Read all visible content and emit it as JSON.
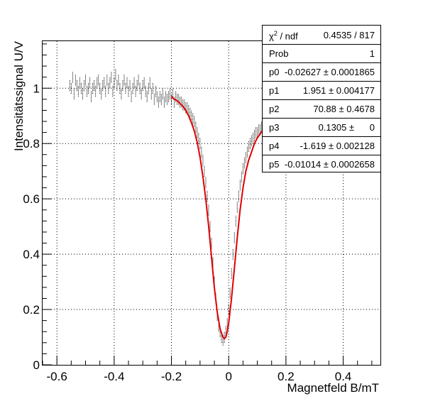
{
  "chart_data": {
    "type": "scatter",
    "xlabel": "Magnetfeld B/mT",
    "ylabel": "Intensitätssignal U/V",
    "xlim": [
      -0.65,
      0.53
    ],
    "ylim": [
      0,
      1.17
    ],
    "xticks": [
      -0.6,
      -0.4,
      -0.2,
      0,
      0.2,
      0.4
    ],
    "xtick_labels": [
      "-0.6",
      "-0.4",
      "-0.2",
      "0",
      "0.2",
      "0.4"
    ],
    "yticks": [
      0,
      0.2,
      0.4,
      0.6,
      0.8,
      1
    ],
    "ytick_labels": [
      "0",
      "0.2",
      "0.4",
      "0.6",
      "0.8",
      "1"
    ],
    "grid": true,
    "series": [
      {
        "kind": "data-with-error-bars",
        "color": "#000000",
        "x": [
          -0.555,
          -0.55,
          -0.545,
          -0.54,
          -0.535,
          -0.53,
          -0.525,
          -0.52,
          -0.515,
          -0.51,
          -0.505,
          -0.5,
          -0.495,
          -0.49,
          -0.485,
          -0.48,
          -0.475,
          -0.47,
          -0.465,
          -0.46,
          -0.455,
          -0.45,
          -0.445,
          -0.44,
          -0.435,
          -0.43,
          -0.425,
          -0.42,
          -0.415,
          -0.41,
          -0.405,
          -0.4,
          -0.395,
          -0.39,
          -0.385,
          -0.38,
          -0.375,
          -0.37,
          -0.365,
          -0.36,
          -0.355,
          -0.35,
          -0.345,
          -0.34,
          -0.335,
          -0.33,
          -0.325,
          -0.32,
          -0.315,
          -0.31,
          -0.305,
          -0.3,
          -0.295,
          -0.29,
          -0.285,
          -0.28,
          -0.275,
          -0.27,
          -0.265,
          -0.26,
          -0.255,
          -0.25,
          -0.245,
          -0.24,
          -0.235,
          -0.23,
          -0.225,
          -0.22,
          -0.215,
          -0.21,
          -0.205,
          -0.2,
          -0.195,
          -0.19,
          -0.185,
          -0.18,
          -0.175,
          -0.17,
          -0.165,
          -0.16,
          -0.155,
          -0.15,
          -0.145,
          -0.14,
          -0.135,
          -0.13,
          -0.125,
          -0.12,
          -0.115,
          -0.11,
          -0.105,
          -0.1,
          -0.095,
          -0.09,
          -0.085,
          -0.08,
          -0.075,
          -0.07,
          -0.065,
          -0.06,
          -0.055,
          -0.05,
          -0.045,
          -0.04,
          -0.035,
          -0.03,
          -0.025,
          -0.02,
          -0.015,
          -0.01,
          -0.005,
          0,
          0.005,
          0.01,
          0.015,
          0.02,
          0.025,
          0.03,
          0.035,
          0.04,
          0.045,
          0.05,
          0.055,
          0.06,
          0.065,
          0.07,
          0.075,
          0.08,
          0.085,
          0.09,
          0.095,
          0.1,
          0.105,
          0.11,
          0.115,
          0.12
        ],
        "y": [
          1.01,
          1.0,
          1.04,
          0.98,
          1.03,
          1.01,
          0.99,
          1.02,
          1.0,
          0.98,
          1.01,
          1.03,
          0.99,
          1.0,
          1.02,
          0.97,
          1.0,
          1.01,
          0.99,
          1.02,
          1.03,
          1.0,
          0.98,
          1.01,
          1.02,
          0.99,
          1.03,
          1.0,
          1.02,
          1.04,
          0.99,
          1.02,
          1.05,
          1.01,
          1.03,
          1.0,
          0.98,
          1.01,
          1.03,
          1.0,
          1.02,
          0.99,
          1.01,
          0.97,
          1.0,
          1.02,
          0.99,
          1.01,
          1.03,
          1.0,
          0.98,
          1.01,
          1.02,
          0.99,
          0.97,
          1.0,
          1.02,
          0.98,
          1.0,
          0.96,
          0.99,
          0.97,
          0.95,
          0.97,
          0.96,
          0.98,
          0.95,
          0.97,
          0.96,
          0.97,
          0.98,
          0.96,
          0.98,
          0.95,
          0.97,
          0.96,
          0.96,
          0.95,
          0.95,
          0.94,
          0.94,
          0.93,
          0.93,
          0.92,
          0.91,
          0.9,
          0.89,
          0.88,
          0.86,
          0.84,
          0.82,
          0.8,
          0.77,
          0.74,
          0.7,
          0.66,
          0.61,
          0.56,
          0.5,
          0.44,
          0.37,
          0.3,
          0.24,
          0.18,
          0.14,
          0.12,
          0.1,
          0.09,
          0.1,
          0.12,
          0.15,
          0.2,
          0.26,
          0.33,
          0.4,
          0.46,
          0.52,
          0.57,
          0.61,
          0.65,
          0.68,
          0.71,
          0.73,
          0.75,
          0.77,
          0.79,
          0.8,
          0.81,
          0.82,
          0.83,
          0.84,
          0.84,
          0.85,
          0.85,
          0.86,
          0.86
        ],
        "yerr": 0.02
      },
      {
        "kind": "fit",
        "color": "#e00000",
        "x": [
          -0.2,
          -0.19,
          -0.18,
          -0.17,
          -0.16,
          -0.15,
          -0.14,
          -0.13,
          -0.12,
          -0.11,
          -0.1,
          -0.09,
          -0.08,
          -0.07,
          -0.06,
          -0.05,
          -0.04,
          -0.03,
          -0.02,
          -0.015,
          -0.01,
          -0.005,
          0,
          0.01,
          0.02,
          0.03,
          0.04,
          0.05,
          0.06,
          0.07,
          0.08,
          0.09,
          0.1,
          0.11,
          0.12
        ],
        "y": [
          0.97,
          0.96,
          0.955,
          0.945,
          0.935,
          0.92,
          0.9,
          0.875,
          0.845,
          0.805,
          0.75,
          0.68,
          0.6,
          0.5,
          0.39,
          0.28,
          0.19,
          0.13,
          0.1,
          0.095,
          0.1,
          0.12,
          0.15,
          0.24,
          0.35,
          0.46,
          0.56,
          0.64,
          0.7,
          0.74,
          0.77,
          0.8,
          0.82,
          0.835,
          0.85
        ]
      }
    ]
  },
  "stats": {
    "rows": [
      {
        "name": "ndf_label",
        "label_sym": "χ",
        "label_sup": "2",
        "label_rest": " / ndf",
        "value": "0.4535 / 817"
      },
      {
        "label": "Prob",
        "value": "1"
      },
      {
        "label": "p0",
        "value": "-0.02627 ± 0.0001865"
      },
      {
        "label": "p1",
        "value": "1.951 ± 0.004177"
      },
      {
        "label": "p2",
        "value": "70.88 ± 0.4678"
      },
      {
        "label": "p3",
        "value": "0.1305 ±      0"
      },
      {
        "label": "p4",
        "value": "-1.619 ± 0.002128"
      },
      {
        "label": "p5",
        "value": "-0.01014 ± 0.0002658"
      }
    ]
  }
}
